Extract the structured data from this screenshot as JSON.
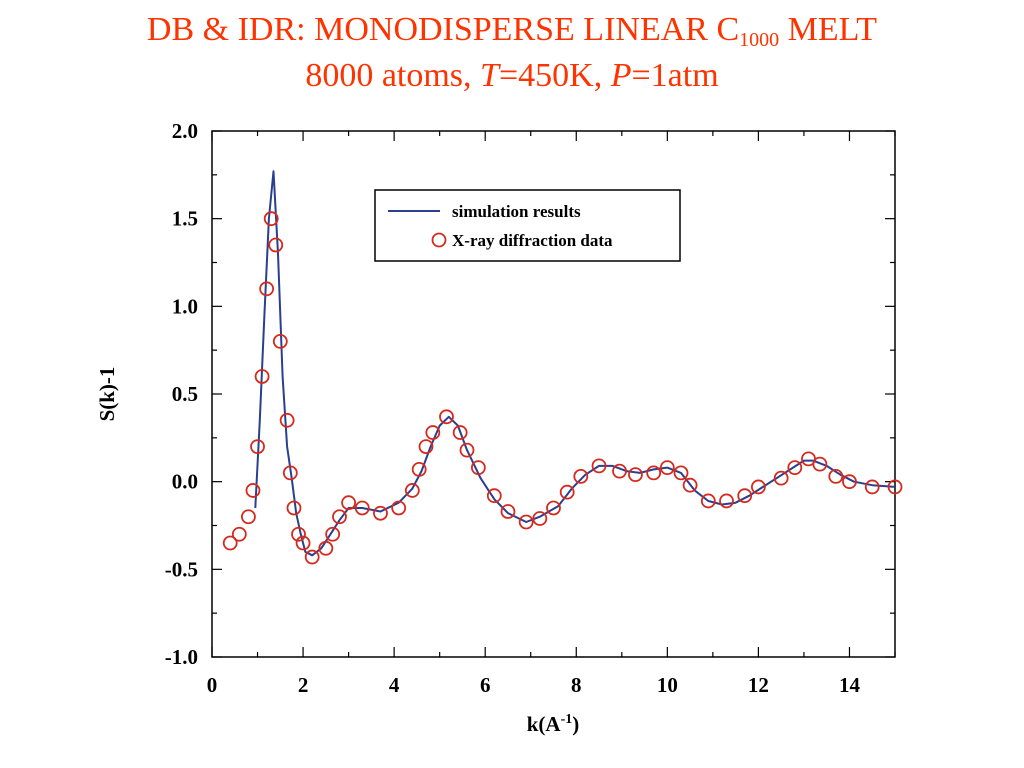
{
  "title": {
    "line1_prefix": "DB & IDR: MONODISPERSE LINEAR C",
    "line1_subscript": "1000",
    "line1_suffix": " MELT",
    "line2_a": "8000 atoms, ",
    "line2_t": "T",
    "line2_b": "=450K, ",
    "line2_p": "P",
    "line2_c": "=1atm"
  },
  "colors": {
    "title": "#ff3300",
    "simulation_line": "#2a3f8f",
    "xray_markers": "#d42a1e"
  },
  "chart_data": {
    "type": "line",
    "xlabel_base": "k(A",
    "xlabel_sup": "-1",
    "xlabel_end": ")",
    "ylabel": "S(k)-1",
    "xlim": [
      0,
      15
    ],
    "ylim": [
      -1.0,
      2.0
    ],
    "x_ticks": [
      "0",
      "2",
      "4",
      "6",
      "8",
      "10",
      "12",
      "14"
    ],
    "y_ticks": [
      "2.0",
      "1.5",
      "1.0",
      "0.5",
      "0.0",
      "-0.5",
      "-1.0"
    ],
    "grid": false,
    "legend_position": "top-center",
    "series": [
      {
        "name": "simulation results",
        "style": "line",
        "x": [
          0.95,
          1.05,
          1.15,
          1.25,
          1.35,
          1.45,
          1.55,
          1.65,
          1.75,
          1.85,
          1.95,
          2.05,
          2.2,
          2.4,
          2.6,
          2.8,
          3.0,
          3.3,
          3.7,
          4.1,
          4.4,
          4.6,
          4.8,
          5.0,
          5.2,
          5.4,
          5.6,
          5.9,
          6.2,
          6.5,
          6.9,
          7.2,
          7.6,
          7.9,
          8.2,
          8.5,
          8.8,
          9.1,
          9.4,
          9.7,
          10.0,
          10.3,
          10.6,
          10.9,
          11.2,
          11.5,
          11.8,
          12.1,
          12.4,
          12.7,
          13.0,
          13.2,
          13.5,
          13.8,
          14.1,
          14.5,
          15.0
        ],
        "y": [
          -0.15,
          0.35,
          0.95,
          1.5,
          1.77,
          1.3,
          0.6,
          0.2,
          0.02,
          -0.18,
          -0.3,
          -0.4,
          -0.42,
          -0.38,
          -0.3,
          -0.22,
          -0.15,
          -0.15,
          -0.17,
          -0.12,
          -0.04,
          0.06,
          0.2,
          0.32,
          0.37,
          0.32,
          0.18,
          0.02,
          -0.1,
          -0.18,
          -0.23,
          -0.2,
          -0.14,
          -0.04,
          0.04,
          0.09,
          0.09,
          0.06,
          0.05,
          0.07,
          0.08,
          0.05,
          -0.05,
          -0.11,
          -0.13,
          -0.12,
          -0.08,
          -0.03,
          0.02,
          0.07,
          0.12,
          0.12,
          0.09,
          0.04,
          0.0,
          -0.02,
          -0.03
        ]
      },
      {
        "name": "X-ray diffraction data",
        "style": "markers",
        "x": [
          0.4,
          0.6,
          0.8,
          0.9,
          1.0,
          1.1,
          1.2,
          1.3,
          1.4,
          1.5,
          1.65,
          1.72,
          1.8,
          1.9,
          2.0,
          2.2,
          2.5,
          2.65,
          2.8,
          3.0,
          3.3,
          3.7,
          4.1,
          4.4,
          4.55,
          4.7,
          4.85,
          5.15,
          5.45,
          5.6,
          5.85,
          6.2,
          6.5,
          6.9,
          7.2,
          7.5,
          7.8,
          8.1,
          8.5,
          8.95,
          9.3,
          9.7,
          10.0,
          10.3,
          10.5,
          10.9,
          11.3,
          11.7,
          12.0,
          12.5,
          12.8,
          13.1,
          13.35,
          13.7,
          14.0,
          14.5,
          15.0
        ],
        "y": [
          -0.35,
          -0.3,
          -0.2,
          -0.05,
          0.2,
          0.6,
          1.1,
          1.5,
          1.35,
          0.8,
          0.35,
          0.05,
          -0.15,
          -0.3,
          -0.35,
          -0.43,
          -0.38,
          -0.3,
          -0.2,
          -0.12,
          -0.15,
          -0.18,
          -0.15,
          -0.05,
          0.07,
          0.2,
          0.28,
          0.37,
          0.28,
          0.18,
          0.08,
          -0.08,
          -0.17,
          -0.23,
          -0.21,
          -0.15,
          -0.06,
          0.03,
          0.09,
          0.06,
          0.04,
          0.05,
          0.08,
          0.05,
          -0.02,
          -0.11,
          -0.11,
          -0.08,
          -0.03,
          0.02,
          0.08,
          0.13,
          0.1,
          0.03,
          0.0,
          -0.03,
          -0.03
        ]
      }
    ]
  }
}
